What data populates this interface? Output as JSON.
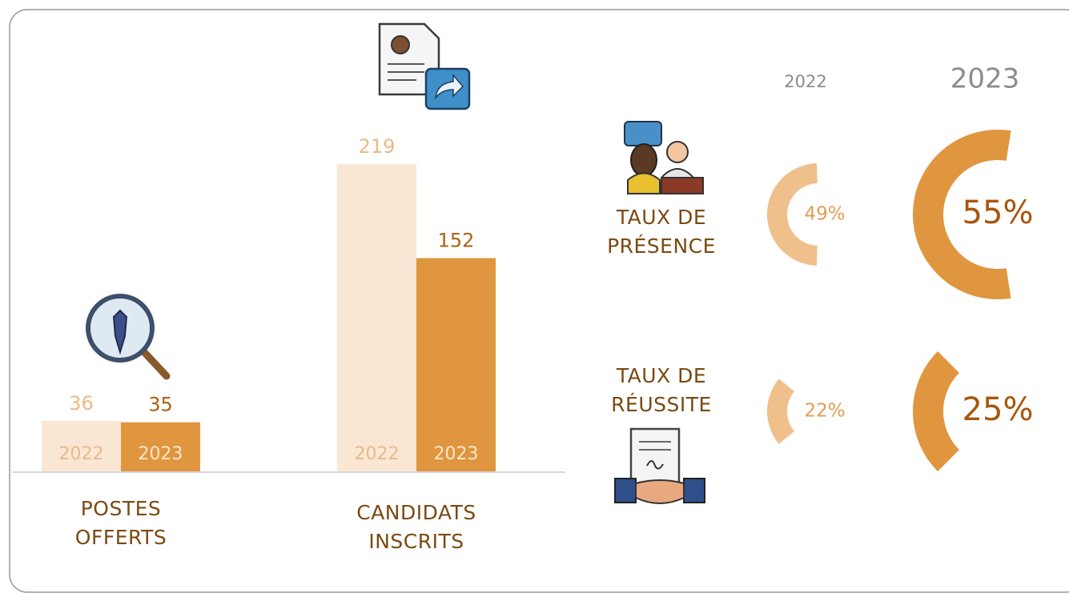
{
  "chart_data": [
    {
      "type": "bar",
      "categories": [
        "POSTES OFFERTS",
        "CANDIDATS INSCRITS"
      ],
      "series": [
        {
          "name": "2022",
          "color": "#f9e7d4",
          "label_color": "#e9b988",
          "values": [
            36,
            219
          ]
        },
        {
          "name": "2023",
          "color": "#e0963f",
          "label_color": "#b0600f",
          "values": [
            35,
            152
          ]
        }
      ]
    },
    {
      "type": "gauge",
      "categories": [
        "TAUX DE PRÉSENCE",
        "TAUX DE RÉUSSITE"
      ],
      "series": [
        {
          "name": "2022",
          "color": "#efc08c",
          "label_color": "#e29c52",
          "values": [
            49,
            22
          ],
          "value_labels": [
            "49%",
            "22%"
          ]
        },
        {
          "name": "2023",
          "color": "#e0963f",
          "label_color": "#a8560e",
          "values": [
            55,
            25
          ],
          "value_labels": [
            "55%",
            "25%"
          ]
        }
      ]
    }
  ]
}
